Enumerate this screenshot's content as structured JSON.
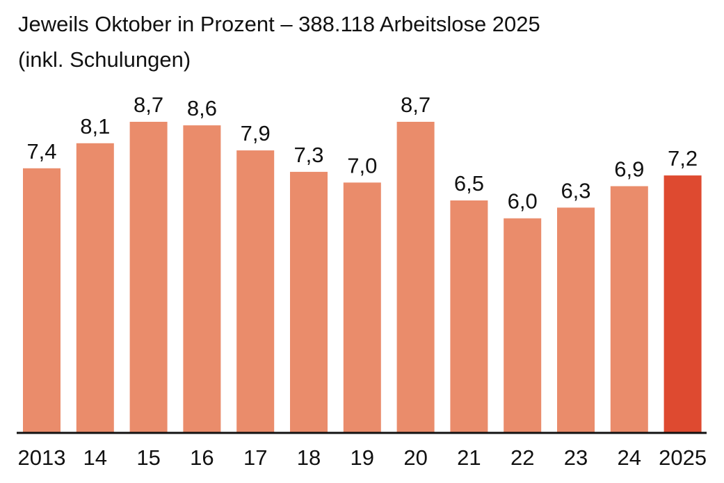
{
  "subtitle": {
    "line1": "Jeweils Oktober in Prozent – 388.118 Arbeitslose 2025",
    "line2": "(inkl. Schulungen)"
  },
  "colors": {
    "bar": "#ea8c6b",
    "highlight": "#de4a30",
    "baseline": "#111111"
  },
  "chart_data": {
    "type": "bar",
    "categories": [
      "2013",
      "14",
      "15",
      "16",
      "17",
      "18",
      "19",
      "20",
      "21",
      "22",
      "23",
      "24",
      "2025"
    ],
    "values": [
      7.4,
      8.1,
      8.7,
      8.6,
      7.9,
      7.3,
      7.0,
      8.7,
      6.5,
      6.0,
      6.3,
      6.9,
      7.2
    ],
    "value_labels": [
      "7,4",
      "8,1",
      "8,7",
      "8,6",
      "7,9",
      "7,3",
      "7,0",
      "8,7",
      "6,5",
      "6,0",
      "6,3",
      "6,9",
      "7,2"
    ],
    "highlight_category": "2025",
    "ylim": [
      0,
      8.7
    ],
    "grid": false,
    "legend": "none"
  }
}
